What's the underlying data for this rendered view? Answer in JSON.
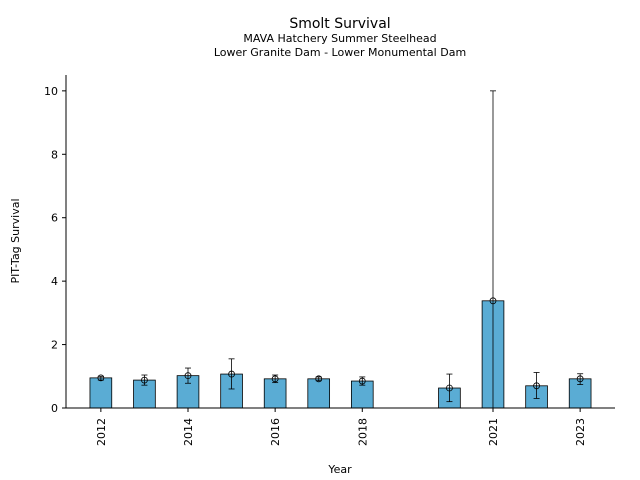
{
  "chart_data": {
    "type": "bar",
    "title": "Smolt Survival",
    "subtitle_lines": [
      "MAVA Hatchery Summer Steelhead",
      "Lower Granite Dam - Lower Monumental Dam"
    ],
    "xlabel": "Year",
    "ylabel": "PIT-Tag Survival",
    "xlim": [
      2011.2,
      2023.8
    ],
    "ylim": [
      0,
      10.5
    ],
    "yticks": [
      0,
      2,
      4,
      6,
      8,
      10
    ],
    "xticks": [
      2012,
      2014,
      2016,
      2018,
      2021,
      2023
    ],
    "bar_color": "#5aacd4",
    "series": [
      {
        "points": [
          {
            "year": 2012,
            "value": 0.95,
            "low": 0.88,
            "high": 1.0
          },
          {
            "year": 2013,
            "value": 0.88,
            "low": 0.72,
            "high": 1.04
          },
          {
            "year": 2014,
            "value": 1.02,
            "low": 0.78,
            "high": 1.26
          },
          {
            "year": 2015,
            "value": 1.07,
            "low": 0.6,
            "high": 1.55
          },
          {
            "year": 2016,
            "value": 0.92,
            "low": 0.8,
            "high": 1.04
          },
          {
            "year": 2017,
            "value": 0.92,
            "low": 0.86,
            "high": 0.98
          },
          {
            "year": 2018,
            "value": 0.85,
            "low": 0.72,
            "high": 0.98
          },
          {
            "year": 2020,
            "value": 0.63,
            "low": 0.2,
            "high": 1.07
          },
          {
            "year": 2021,
            "value": 3.38,
            "low": 0.0,
            "high": 10.0
          },
          {
            "year": 2022,
            "value": 0.7,
            "low": 0.3,
            "high": 1.12
          },
          {
            "year": 2023,
            "value": 0.92,
            "low": 0.74,
            "high": 1.08
          }
        ]
      }
    ]
  }
}
